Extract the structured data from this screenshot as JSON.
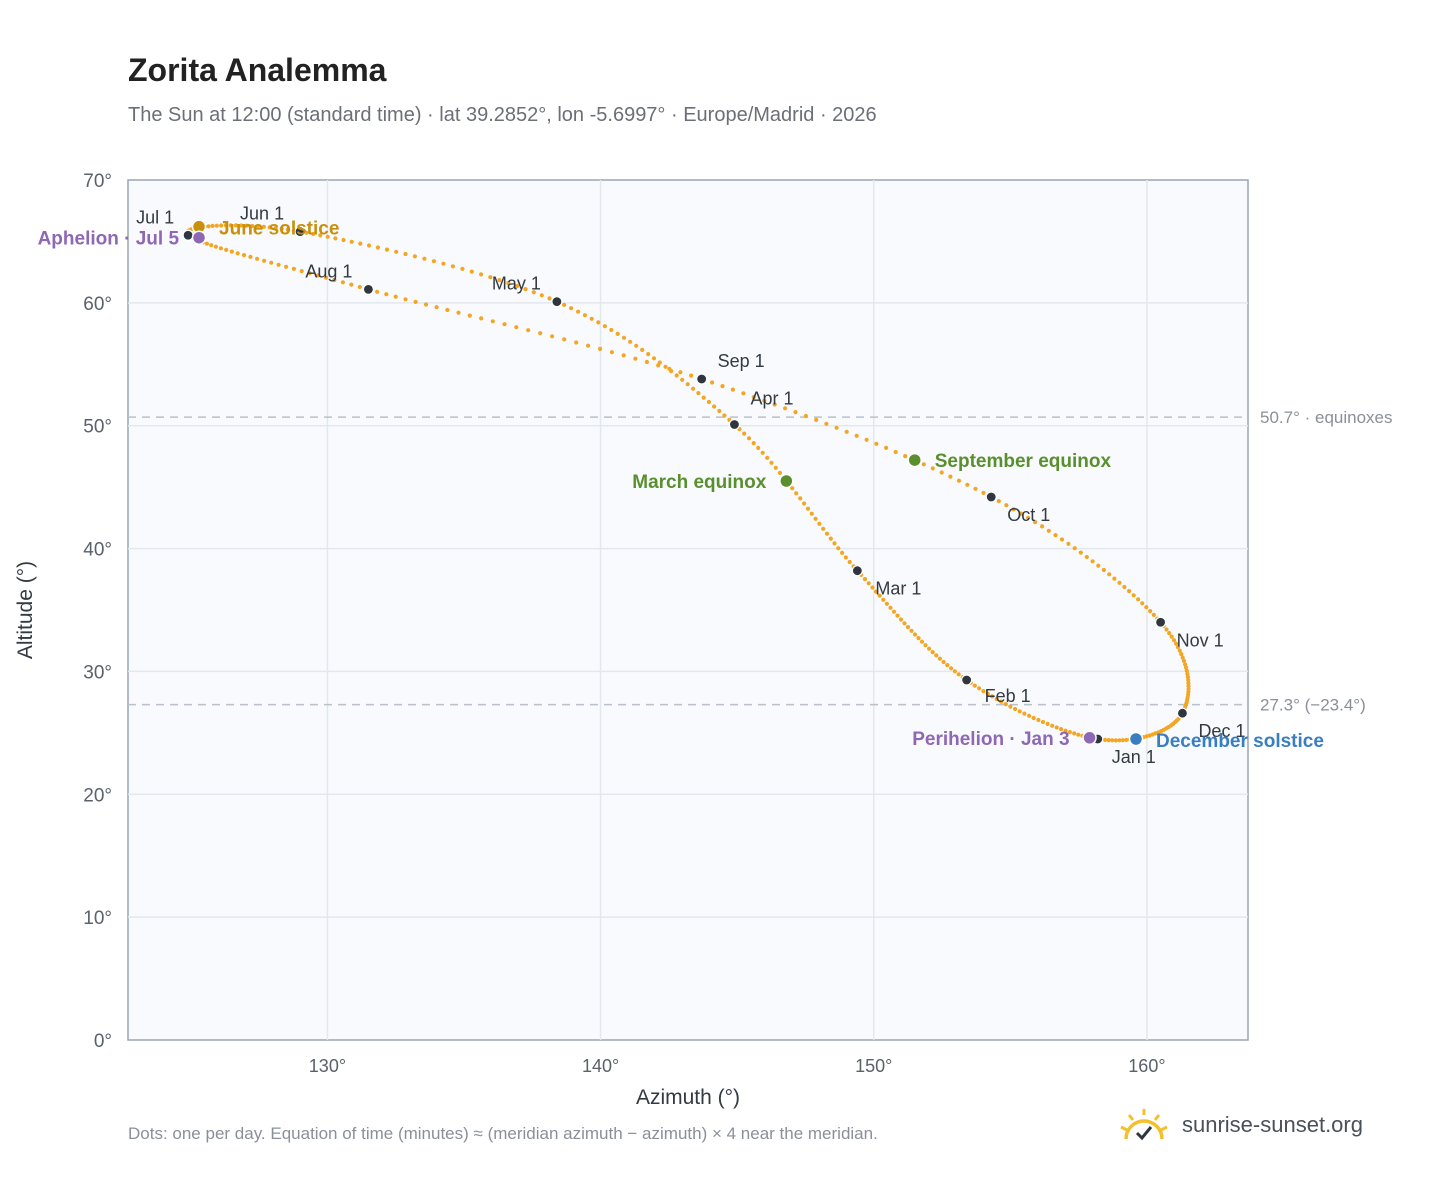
{
  "title": "Zorita Analemma",
  "subtitle": "The Sun at 12:00 (standard time) · lat 39.2852°, lon -5.6997° · Europe/Madrid · 2026",
  "footnote": "Dots: one per day. Equation of time (minutes) ≈ (meridian azimuth − azimuth) × 4 near the meridian.",
  "brand": "sunrise-sunset.org",
  "chart_data": {
    "type": "scatter",
    "title": "Zorita Analemma",
    "xlabel": "Azimuth (°)",
    "ylabel": "Altitude (°)",
    "xlim": [
      122.7,
      163.7
    ],
    "ylim": [
      0,
      70
    ],
    "xticks": [
      130,
      140,
      150,
      160
    ],
    "xtick_labels": [
      "130°",
      "140°",
      "150°",
      "160°"
    ],
    "yticks": [
      0,
      10,
      20,
      30,
      40,
      50,
      60,
      70
    ],
    "ytick_labels": [
      "0°",
      "10°",
      "20°",
      "30°",
      "40°",
      "50°",
      "60°",
      "70°"
    ],
    "grid": true,
    "reference_lines": [
      {
        "y": 50.7,
        "label": "50.7° · equinoxes"
      },
      {
        "y": 27.3,
        "label": "27.3° (−23.4°)"
      }
    ],
    "months": [
      {
        "label": "Jan 1",
        "az": 158.2,
        "alt": 24.5
      },
      {
        "label": "Feb 1",
        "az": 153.4,
        "alt": 29.3
      },
      {
        "label": "Mar 1",
        "az": 149.4,
        "alt": 38.2
      },
      {
        "label": "Apr 1",
        "az": 144.9,
        "alt": 50.1
      },
      {
        "label": "May 1",
        "az": 138.4,
        "alt": 60.1
      },
      {
        "label": "Jun 1",
        "az": 129.0,
        "alt": 65.8
      },
      {
        "label": "Jul 1",
        "az": 124.9,
        "alt": 65.5
      },
      {
        "label": "Aug 1",
        "az": 131.5,
        "alt": 61.1
      },
      {
        "label": "Sep 1",
        "az": 143.7,
        "alt": 53.8
      },
      {
        "label": "Oct 1",
        "az": 154.3,
        "alt": 44.2
      },
      {
        "label": "Nov 1",
        "az": 160.5,
        "alt": 34.0
      },
      {
        "label": "Dec 1",
        "az": 161.3,
        "alt": 26.6
      }
    ],
    "events": [
      {
        "label": "June solstice",
        "az": 125.3,
        "alt": 66.2,
        "color": "#c8900c"
      },
      {
        "label": "Aphelion · Jul 5",
        "az": 125.3,
        "alt": 65.3,
        "color": "#8e67b5"
      },
      {
        "label": "March equinox",
        "az": 146.8,
        "alt": 45.5,
        "color": "#5a8f2e"
      },
      {
        "label": "September equinox",
        "az": 151.5,
        "alt": 47.2,
        "color": "#5a8f2e"
      },
      {
        "label": "Perihelion · Jan 3",
        "az": 157.9,
        "alt": 24.6,
        "color": "#8e67b5"
      },
      {
        "label": "December solstice",
        "az": 159.6,
        "alt": 24.5,
        "color": "#3a7ec2"
      }
    ],
    "colors": {
      "path": "#f4a623",
      "month_dot": "#2f3640",
      "plot_bg": "#f8fafd",
      "grid": "#e3e8ee",
      "reference_line": "#b8c1cc"
    }
  }
}
